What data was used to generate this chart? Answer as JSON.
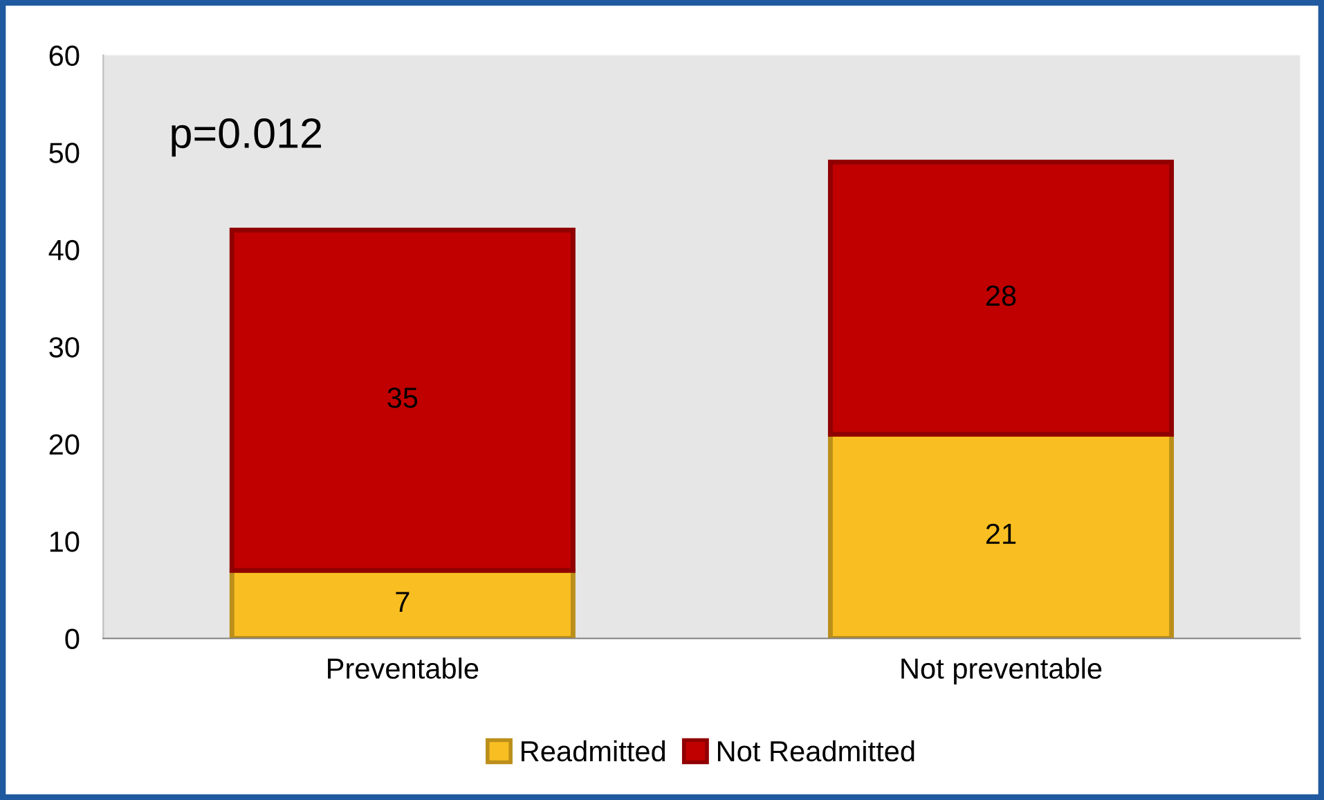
{
  "chart_data": {
    "type": "bar",
    "stacked": true,
    "categories": [
      "Preventable",
      "Not preventable"
    ],
    "series": [
      {
        "name": "Readmitted",
        "color": "#f9bf22",
        "values": [
          7,
          21
        ]
      },
      {
        "name": "Not Readmitted",
        "color": "#c00000",
        "values": [
          35,
          28
        ]
      }
    ],
    "ylim": [
      0,
      60
    ],
    "yticks": [
      0,
      10,
      20,
      30,
      40,
      50,
      60
    ],
    "grid": false,
    "legend": "bottom",
    "data_labels": true,
    "annotations": [
      "p=0.012"
    ]
  }
}
